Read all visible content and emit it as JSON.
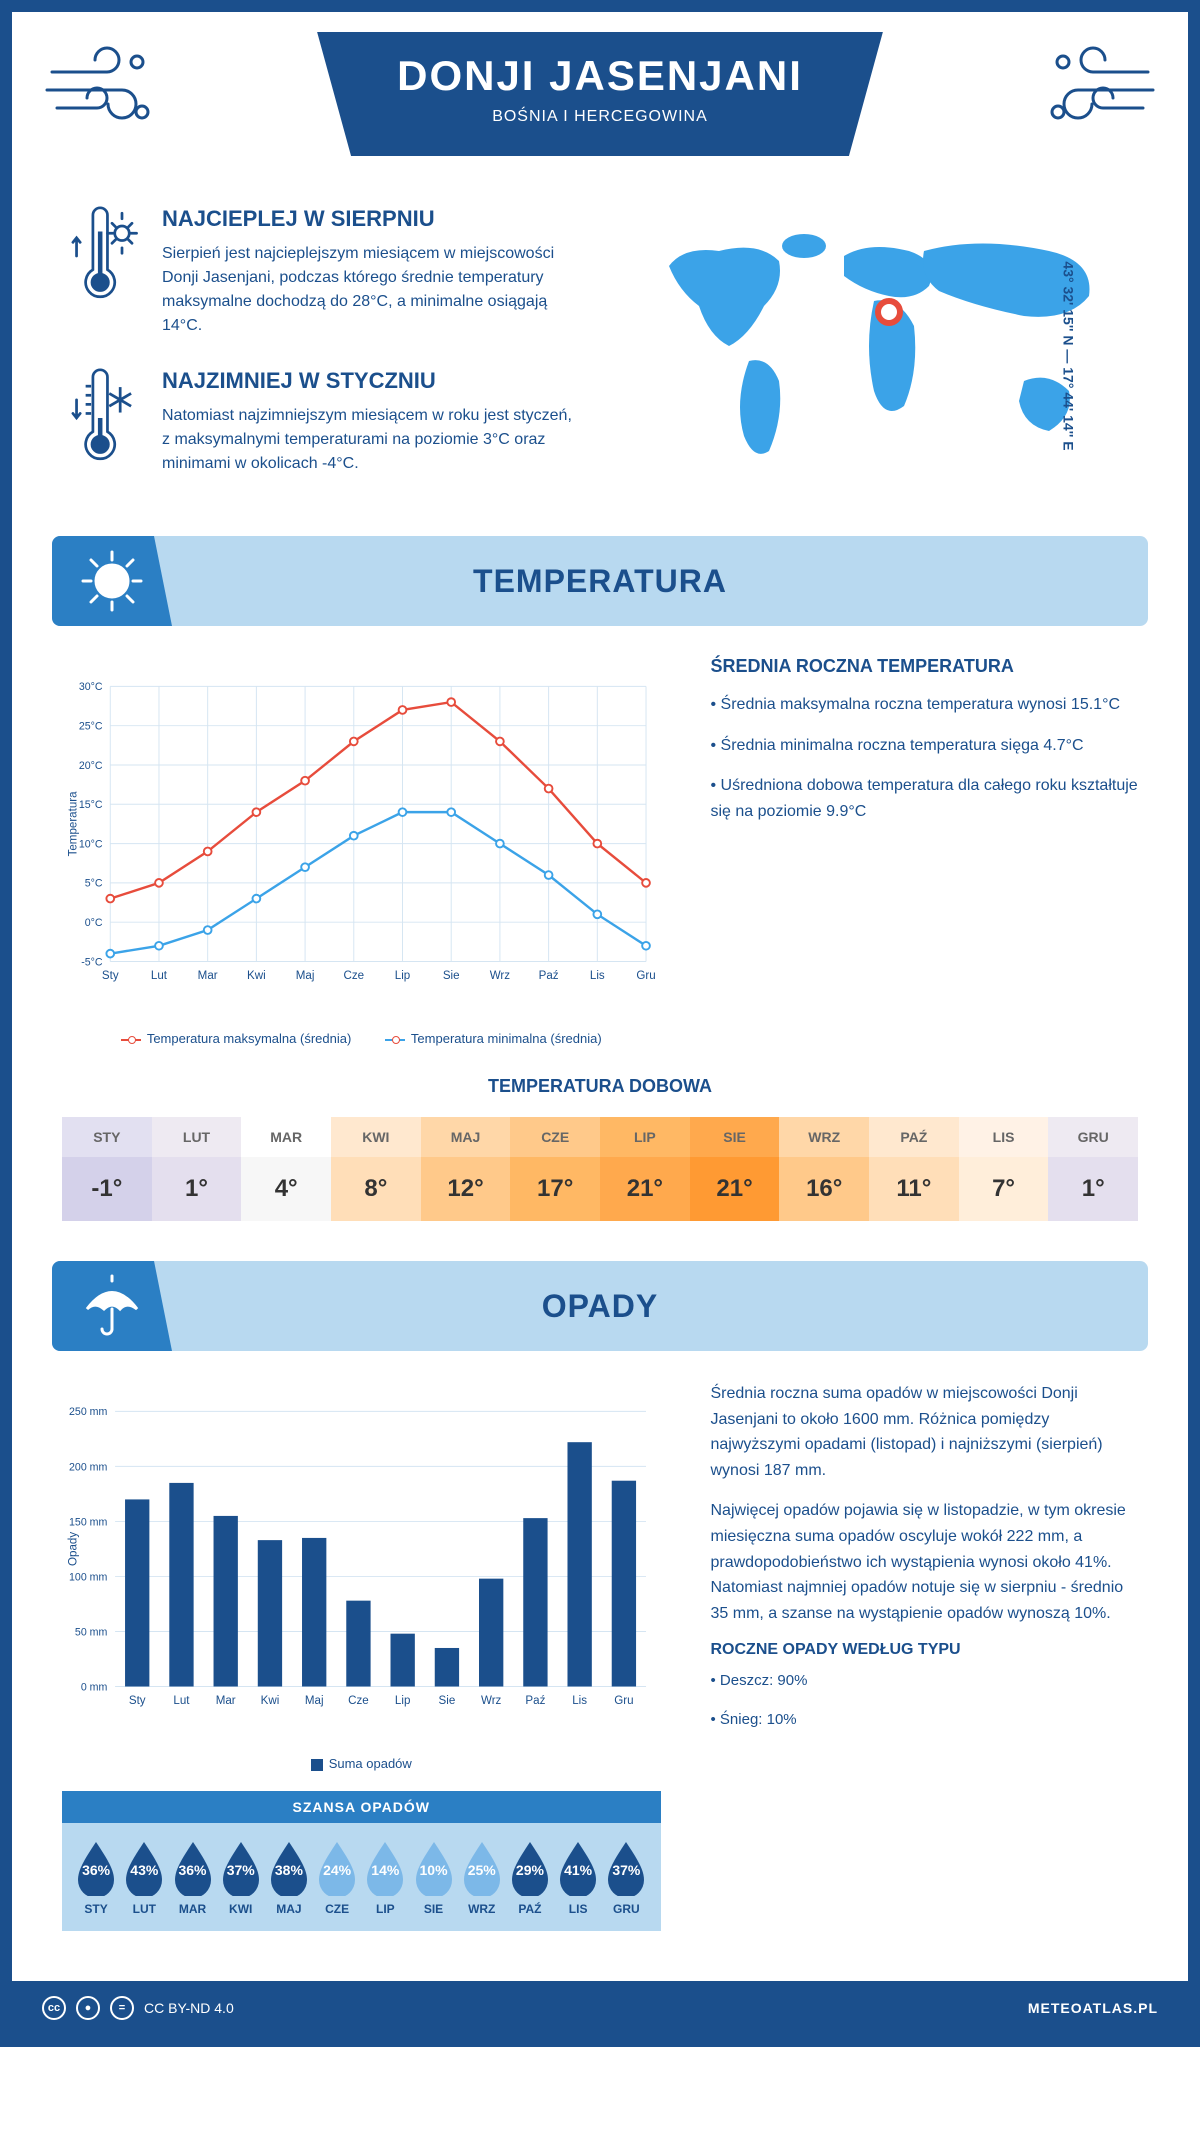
{
  "header": {
    "title": "DONJI JASENJANI",
    "subtitle": "BOŚNIA I HERCEGOWINA"
  },
  "coords": "43° 32' 15'' N — 17° 44' 14'' E",
  "facts": {
    "hot": {
      "title": "NAJCIEPLEJ W SIERPNIU",
      "text": "Sierpień jest najcieplejszym miesiącem w miejscowości Donji Jasenjani, podczas którego średnie temperatury maksymalne dochodzą do 28°C, a minimalne osiągają 14°C."
    },
    "cold": {
      "title": "NAJZIMNIEJ W STYCZNIU",
      "text": "Natomiast najzimniejszym miesiącem w roku jest styczeń, z maksymalnymi temperaturami na poziomie 3°C oraz minimami w okolicach -4°C."
    }
  },
  "map_marker": {
    "cx_pct": 52,
    "cy_pct": 38
  },
  "temp_section": {
    "heading": "TEMPERATURA",
    "chart": {
      "months": [
        "Sty",
        "Lut",
        "Mar",
        "Kwi",
        "Maj",
        "Cze",
        "Lip",
        "Sie",
        "Wrz",
        "Paź",
        "Lis",
        "Gru"
      ],
      "max_series": [
        3,
        5,
        9,
        14,
        18,
        23,
        27,
        28,
        23,
        17,
        10,
        5
      ],
      "min_series": [
        -4,
        -3,
        -1,
        3,
        7,
        11,
        14,
        14,
        10,
        6,
        1,
        -3
      ],
      "ylim": [
        -5,
        30
      ],
      "ytick_step": 5,
      "ylabel": "Temperatura",
      "max_color": "#e74c3c",
      "min_color": "#3ba3e8",
      "grid_color": "#d5e5f2",
      "legend_max": "Temperatura maksymalna (średnia)",
      "legend_min": "Temperatura minimalna (średnia)"
    },
    "summary": {
      "title": "ŚREDNIA ROCZNA TEMPERATURA",
      "b1": "• Średnia maksymalna roczna temperatura wynosi 15.1°C",
      "b2": "• Średnia minimalna roczna temperatura sięga 4.7°C",
      "b3": "• Uśredniona dobowa temperatura dla całego roku kształtuje się na poziomie 9.9°C"
    },
    "daily": {
      "title": "TEMPERATURA DOBOWA",
      "months": [
        "STY",
        "LUT",
        "MAR",
        "KWI",
        "MAJ",
        "CZE",
        "LIP",
        "SIE",
        "WRZ",
        "PAŹ",
        "LIS",
        "GRU"
      ],
      "values": [
        "-1°",
        "1°",
        "4°",
        "8°",
        "12°",
        "17°",
        "21°",
        "21°",
        "16°",
        "11°",
        "7°",
        "1°"
      ],
      "head_colors": [
        "#e2e0f1",
        "#eeeaf2",
        "#ffffff",
        "#ffe8cf",
        "#ffd7a8",
        "#ffc98a",
        "#ffb864",
        "#ffa94d",
        "#ffd7a8",
        "#ffe8cf",
        "#fff2e6",
        "#eeeaf2"
      ],
      "val_colors": [
        "#d4d1ea",
        "#e4dfee",
        "#f7f7f7",
        "#ffdeb8",
        "#ffc98a",
        "#ffb864",
        "#ffa94d",
        "#ff9a33",
        "#ffc98a",
        "#ffdeb8",
        "#ffeeda",
        "#e4dfee"
      ]
    }
  },
  "rain_section": {
    "heading": "OPADY",
    "chart": {
      "months": [
        "Sty",
        "Lut",
        "Mar",
        "Kwi",
        "Maj",
        "Cze",
        "Lip",
        "Sie",
        "Wrz",
        "Paź",
        "Lis",
        "Gru"
      ],
      "values": [
        170,
        185,
        155,
        133,
        135,
        78,
        48,
        35,
        98,
        153,
        222,
        187
      ],
      "ylim": [
        0,
        250
      ],
      "ytick_step": 50,
      "ylabel": "Opady",
      "bar_color": "#1b4f8c",
      "grid_color": "#d5e5f2",
      "legend": "Suma opadów"
    },
    "summary": {
      "p1": "Średnia roczna suma opadów w miejscowości Donji Jasenjani to około 1600 mm. Różnica pomiędzy najwyższymi opadami (listopad) i najniższymi (sierpień) wynosi 187 mm.",
      "p2": "Najwięcej opadów pojawia się w listopadzie, w tym okresie miesięczna suma opadów oscyluje wokół 222 mm, a prawdopodobieństwo ich wystąpienia wynosi około 41%. Natomiast najmniej opadów notuje się w sierpniu - średnio 35 mm, a szanse na wystąpienie opadów wynoszą 10%."
    },
    "chance": {
      "title": "SZANSA OPADÓW",
      "months": [
        "STY",
        "LUT",
        "MAR",
        "KWI",
        "MAJ",
        "CZE",
        "LIP",
        "SIE",
        "WRZ",
        "PAŹ",
        "LIS",
        "GRU"
      ],
      "pct": [
        "36%",
        "43%",
        "36%",
        "37%",
        "38%",
        "24%",
        "14%",
        "10%",
        "25%",
        "29%",
        "41%",
        "37%"
      ],
      "dark_threshold": 28,
      "dark_color": "#1b4f8c",
      "light_color": "#7cb8e8"
    },
    "types": {
      "title": "ROCZNE OPADY WEDŁUG TYPU",
      "l1": "• Deszcz: 90%",
      "l2": "• Śnieg: 10%"
    }
  },
  "footer": {
    "license": "CC BY-ND 4.0",
    "site": "METEOATLAS.PL"
  }
}
